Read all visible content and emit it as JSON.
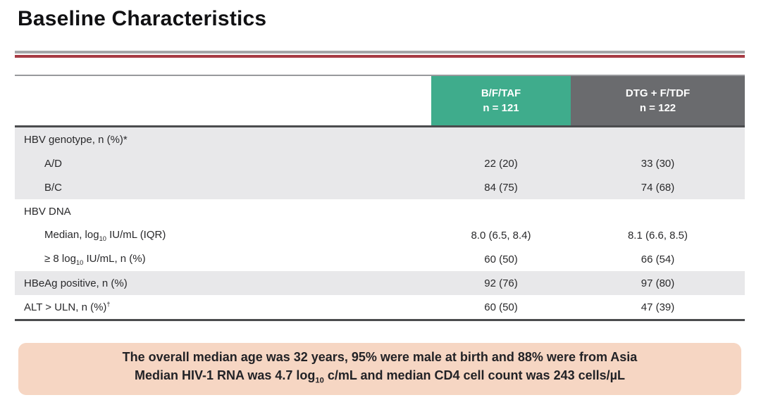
{
  "title": "Baseline Characteristics",
  "theme": {
    "accent_teal": "#3FAC8C",
    "accent_gray": "#6A6B6E",
    "rule_gray": "#A5A6A8",
    "rule_red": "#A73B44",
    "row_shade": "#E8E8EA",
    "border_dark": "#4B4C4E",
    "callout_bg": "#F6D6C3"
  },
  "table": {
    "columns": [
      {
        "name": "B/F/TAF",
        "n": "n = 121"
      },
      {
        "name": "DTG + F/TDF",
        "n": "n = 122"
      }
    ],
    "rows": [
      {
        "label": [
          {
            "t": "HBV genotype, n (%)*"
          }
        ],
        "indent": false,
        "shaded": true,
        "values": [
          "",
          ""
        ]
      },
      {
        "label": [
          {
            "t": "A/D"
          }
        ],
        "indent": true,
        "shaded": true,
        "values": [
          "22 (20)",
          "33 (30)"
        ]
      },
      {
        "label": [
          {
            "t": "B/C"
          }
        ],
        "indent": true,
        "shaded": true,
        "values": [
          "84 (75)",
          "74 (68)"
        ]
      },
      {
        "label": [
          {
            "t": "HBV DNA"
          }
        ],
        "indent": false,
        "shaded": false,
        "values": [
          "",
          ""
        ]
      },
      {
        "label": [
          {
            "t": "Median, log"
          },
          {
            "t": "10",
            "s": "sub"
          },
          {
            "t": " IU/mL (IQR)"
          }
        ],
        "indent": true,
        "shaded": false,
        "values": [
          "8.0 (6.5, 8.4)",
          "8.1 (6.6, 8.5)"
        ]
      },
      {
        "label": [
          {
            "t": "≥ 8 log"
          },
          {
            "t": "10",
            "s": "sub"
          },
          {
            "t": " IU/mL, n (%)"
          }
        ],
        "indent": true,
        "shaded": false,
        "values": [
          "60 (50)",
          "66 (54)"
        ]
      },
      {
        "label": [
          {
            "t": "HBeAg positive, n (%)"
          }
        ],
        "indent": false,
        "shaded": true,
        "values": [
          "92 (76)",
          "97 (80)"
        ]
      },
      {
        "label": [
          {
            "t": "ALT > ULN, n (%)"
          },
          {
            "t": "†",
            "s": "sup"
          }
        ],
        "indent": false,
        "shaded": false,
        "values": [
          "60 (50)",
          "47 (39)"
        ]
      }
    ]
  },
  "callout": {
    "lines": [
      [
        {
          "t": "The overall median age was 32 years, 95% were male at birth and 88% were from Asia"
        }
      ],
      [
        {
          "t": "Median HIV-1 RNA was 4.7 log"
        },
        {
          "t": "10",
          "s": "sub"
        },
        {
          "t": " c/mL and median CD4 cell count was 243 cells/µL"
        }
      ]
    ]
  }
}
